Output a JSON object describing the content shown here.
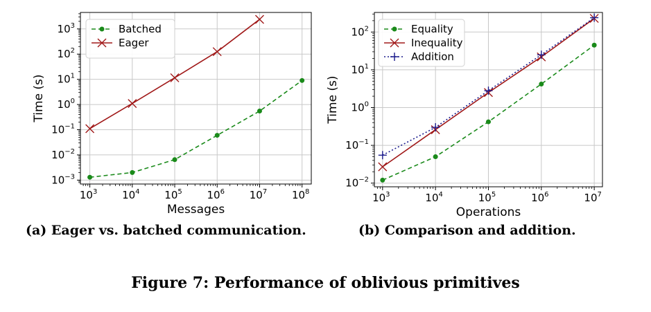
{
  "chart_data": [
    {
      "type": "line",
      "xscale": "log",
      "yscale": "log",
      "xlabel": "Messages",
      "ylabel": "Time (s)",
      "xlim": [
        600,
        165000000
      ],
      "ylim": [
        0.0007,
        4500
      ],
      "x_ticks": [
        1000,
        10000,
        100000,
        1000000,
        10000000,
        100000000
      ],
      "x_tick_labels": [
        {
          "base": "10",
          "exp": "3"
        },
        {
          "base": "10",
          "exp": "4"
        },
        {
          "base": "10",
          "exp": "5"
        },
        {
          "base": "10",
          "exp": "6"
        },
        {
          "base": "10",
          "exp": "7"
        },
        {
          "base": "10",
          "exp": "8"
        }
      ],
      "y_ticks": [
        0.001,
        0.01,
        0.1,
        1,
        10,
        100,
        1000
      ],
      "y_tick_labels": [
        {
          "base": "10",
          "exp": "−3"
        },
        {
          "base": "10",
          "exp": "−2"
        },
        {
          "base": "10",
          "exp": "−1"
        },
        {
          "base": "10",
          "exp": "0"
        },
        {
          "base": "10",
          "exp": "1"
        },
        {
          "base": "10",
          "exp": "2"
        },
        {
          "base": "10",
          "exp": "3"
        }
      ],
      "grid": true,
      "legend": "top-left",
      "series": [
        {
          "name": "Batched",
          "color": "#1a8a1a",
          "style": "dashed",
          "marker": "dot",
          "points": [
            [
              1000,
              0.0013
            ],
            [
              10000,
              0.002
            ],
            [
              100000,
              0.0065
            ],
            [
              1000000,
              0.06
            ],
            [
              10000000,
              0.55
            ],
            [
              100000000,
              9
            ]
          ]
        },
        {
          "name": "Eager",
          "color": "#a01818",
          "style": "solid",
          "marker": "x",
          "points": [
            [
              1000,
              0.11
            ],
            [
              10000,
              1.1
            ],
            [
              100000,
              11.5
            ],
            [
              1000000,
              125
            ],
            [
              10000000,
              2400
            ]
          ]
        }
      ]
    },
    {
      "type": "line",
      "xscale": "log",
      "yscale": "log",
      "xlabel": "Operations",
      "ylabel": "Time (s)",
      "xlim": [
        700,
        14300000
      ],
      "ylim": [
        0.008,
        330
      ],
      "x_ticks": [
        1000,
        10000,
        100000,
        1000000,
        10000000
      ],
      "x_tick_labels": [
        {
          "base": "10",
          "exp": "3"
        },
        {
          "base": "10",
          "exp": "4"
        },
        {
          "base": "10",
          "exp": "5"
        },
        {
          "base": "10",
          "exp": "6"
        },
        {
          "base": "10",
          "exp": "7"
        }
      ],
      "y_ticks": [
        0.01,
        0.1,
        1,
        10,
        100
      ],
      "y_tick_labels": [
        {
          "base": "10",
          "exp": "−2"
        },
        {
          "base": "10",
          "exp": "−1"
        },
        {
          "base": "10",
          "exp": "0"
        },
        {
          "base": "10",
          "exp": "1"
        },
        {
          "base": "10",
          "exp": "2"
        }
      ],
      "grid": true,
      "legend": "top-left",
      "series": [
        {
          "name": "Equality",
          "color": "#1a8a1a",
          "style": "dashed",
          "marker": "dot",
          "points": [
            [
              1000,
              0.012
            ],
            [
              10000,
              0.05
            ],
            [
              100000,
              0.42
            ],
            [
              1000000,
              4.2
            ],
            [
              10000000,
              45
            ]
          ]
        },
        {
          "name": "Inequality",
          "color": "#a01818",
          "style": "solid",
          "marker": "x",
          "points": [
            [
              1000,
              0.027
            ],
            [
              10000,
              0.26
            ],
            [
              100000,
              2.5
            ],
            [
              1000000,
              22
            ],
            [
              10000000,
              230
            ]
          ]
        },
        {
          "name": "Addition",
          "color": "#1a1a8c",
          "style": "dotted",
          "marker": "plus",
          "points": [
            [
              1000,
              0.055
            ],
            [
              10000,
              0.3
            ],
            [
              100000,
              2.8
            ],
            [
              1000000,
              25
            ],
            [
              10000000,
              240
            ]
          ]
        }
      ]
    }
  ],
  "captions": {
    "a": "(a) Eager vs. batched communication.",
    "b": "(b) Comparison and addition.",
    "figure": "Figure 7: Performance of oblivious primitives"
  }
}
